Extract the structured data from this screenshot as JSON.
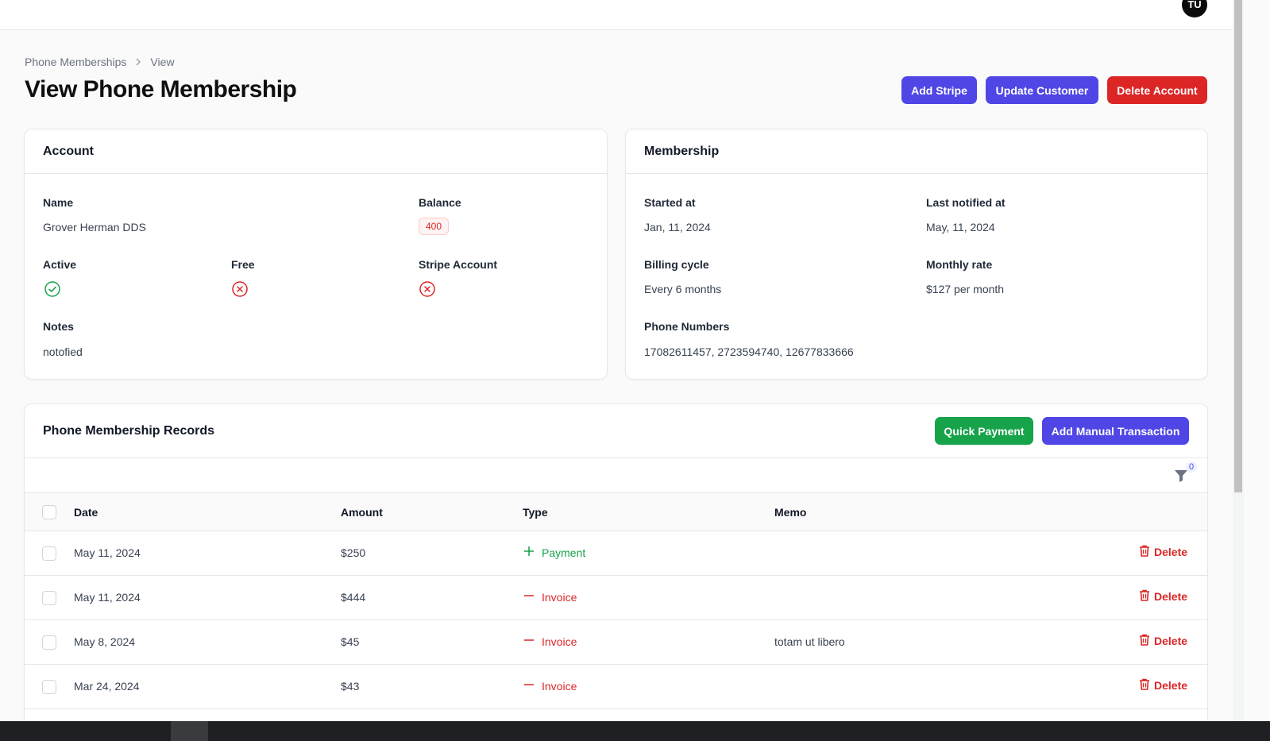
{
  "topbar": {
    "avatar_initials": "TU"
  },
  "breadcrumb": {
    "items": [
      "Phone Memberships",
      "View"
    ]
  },
  "page": {
    "title": "View Phone Membership"
  },
  "header_actions": {
    "add_stripe": "Add Stripe",
    "update_customer": "Update Customer",
    "delete_account": "Delete Account"
  },
  "account": {
    "title": "Account",
    "name_label": "Name",
    "name_value": "Grover Herman DDS",
    "balance_label": "Balance",
    "balance_value": "400",
    "active_label": "Active",
    "active_status": "check-circle-icon",
    "free_label": "Free",
    "free_status": "x-circle-icon",
    "stripe_label": "Stripe Account",
    "stripe_status": "x-circle-icon",
    "notes_label": "Notes",
    "notes_value": "notofied"
  },
  "membership": {
    "title": "Membership",
    "started_label": "Started at",
    "started_value": "Jan, 11, 2024",
    "notified_label": "Last notified at",
    "notified_value": "May, 11, 2024",
    "billing_label": "Billing cycle",
    "billing_value": "Every 6 months",
    "rate_label": "Monthly rate",
    "rate_value": "$127 per month",
    "phones_label": "Phone Numbers",
    "phones_value": "17082611457, 2723594740, 12677833666"
  },
  "records": {
    "title": "Phone Membership Records",
    "quick_payment": "Quick Payment",
    "add_manual": "Add Manual Transaction",
    "filter_count": "0",
    "columns": {
      "date": "Date",
      "amount": "Amount",
      "type": "Type",
      "memo": "Memo"
    },
    "delete_label": "Delete",
    "rows": [
      {
        "date": "May 11, 2024",
        "amount": "$250",
        "type": "Payment",
        "memo": ""
      },
      {
        "date": "May 11, 2024",
        "amount": "$444",
        "type": "Invoice",
        "memo": ""
      },
      {
        "date": "May 8, 2024",
        "amount": "$45",
        "type": "Invoice",
        "memo": "totam ut libero"
      },
      {
        "date": "Mar 24, 2024",
        "amount": "$43",
        "type": "Invoice",
        "memo": ""
      }
    ]
  },
  "colors": {
    "primary": "#4f46e5",
    "danger": "#dc2626",
    "success": "#16a34a"
  }
}
